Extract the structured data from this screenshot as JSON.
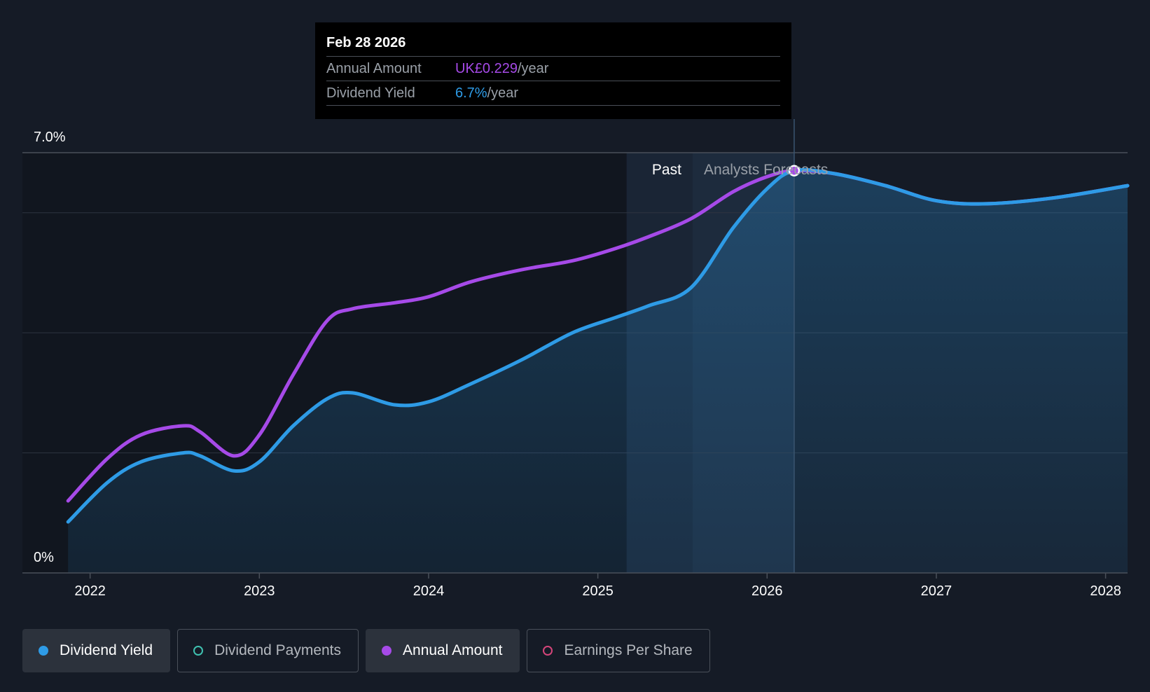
{
  "chart_data": {
    "type": "line",
    "y_axis": {
      "top_label": "7.0%",
      "bottom_label": "0%",
      "ylim": [
        0,
        7.0
      ]
    },
    "x_ticks": [
      "2022",
      "2023",
      "2024",
      "2025",
      "2026",
      "2027",
      "2028"
    ],
    "xlim": [
      2021.6,
      2028.13
    ],
    "past_start": 2025.17,
    "forecast_start": 2025.56,
    "cursor_x": 2026.16,
    "region_labels": {
      "past": "Past",
      "forecast": "Analysts Forecasts"
    },
    "grid": true,
    "series": [
      {
        "name": "Dividend Yield",
        "color": "#2e9be6",
        "fill": true,
        "x": [
          2021.87,
          2022.1,
          2022.3,
          2022.55,
          2022.65,
          2022.85,
          2023.0,
          2023.2,
          2023.4,
          2023.55,
          2023.8,
          2024.0,
          2024.25,
          2024.55,
          2024.85,
          2025.1,
          2025.3,
          2025.55,
          2025.8,
          2026.0,
          2026.16,
          2026.4,
          2026.7,
          2027.0,
          2027.3,
          2027.7,
          2028.13
        ],
        "y": [
          0.85,
          1.5,
          1.85,
          2.0,
          1.95,
          1.7,
          1.85,
          2.45,
          2.9,
          3.0,
          2.8,
          2.85,
          3.15,
          3.55,
          4.0,
          4.25,
          4.45,
          4.75,
          5.75,
          6.4,
          6.7,
          6.65,
          6.45,
          6.2,
          6.15,
          6.25,
          6.45
        ]
      },
      {
        "name": "Annual Amount",
        "color": "#a64ae8",
        "fill": false,
        "x": [
          2021.87,
          2022.1,
          2022.3,
          2022.55,
          2022.65,
          2022.85,
          2023.0,
          2023.2,
          2023.4,
          2023.55,
          2023.8,
          2024.0,
          2024.25,
          2024.55,
          2024.85,
          2025.1,
          2025.3,
          2025.55,
          2025.8,
          2026.0,
          2026.16,
          2026.4,
          2026.7,
          2027.0,
          2027.3,
          2027.7,
          2028.13
        ],
        "y": [
          1.2,
          1.9,
          2.3,
          2.45,
          2.35,
          1.95,
          2.3,
          3.3,
          4.2,
          4.4,
          4.5,
          4.6,
          4.85,
          5.05,
          5.2,
          5.4,
          5.6,
          5.9,
          6.35,
          6.6,
          6.7,
          6.65,
          6.45,
          6.2,
          6.15,
          6.25,
          6.45
        ]
      }
    ],
    "tooltip": {
      "date": "Feb 28 2026",
      "rows": [
        {
          "label": "Annual Amount",
          "value": "UK£0.229",
          "unit": "/year",
          "color": "#a64ae8"
        },
        {
          "label": "Dividend Yield",
          "value": "6.7%",
          "unit": "/year",
          "color": "#2e9be6"
        }
      ]
    }
  },
  "legend": [
    {
      "label": "Dividend Yield",
      "color": "#2e9be6",
      "active": true,
      "filled": true
    },
    {
      "label": "Dividend Payments",
      "color": "#3fc1b0",
      "active": false,
      "filled": false
    },
    {
      "label": "Annual Amount",
      "color": "#a64ae8",
      "active": true,
      "filled": true
    },
    {
      "label": "Earnings Per Share",
      "color": "#d4457a",
      "active": false,
      "filled": false
    }
  ]
}
